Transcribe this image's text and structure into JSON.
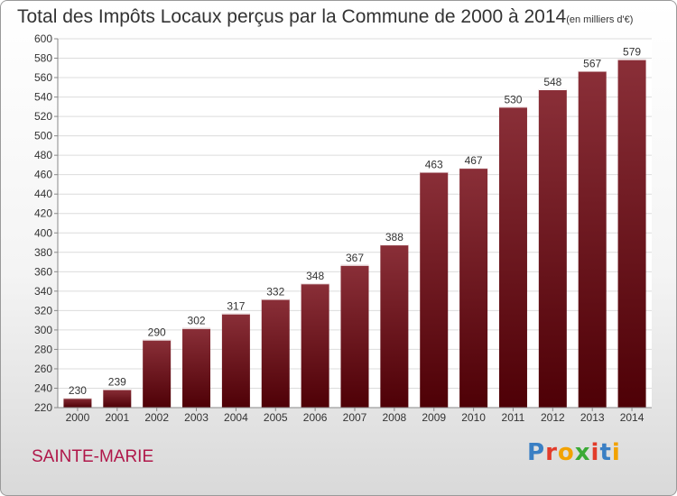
{
  "title": "Total des Impôts Locaux perçus par la Commune de 2000 à 2014",
  "subtitle": "(en milliers d'€)",
  "commune": "SAINTE-MARIE",
  "logo": {
    "text": "Proxiti",
    "letters": [
      {
        "ch": "P",
        "color": "#3a7fc4"
      },
      {
        "ch": "r",
        "color": "#e23b2a"
      },
      {
        "ch": "o",
        "color": "#f2a200"
      },
      {
        "ch": "x",
        "color": "#3aaa35"
      },
      {
        "ch": "i",
        "color": "#e23b2a"
      },
      {
        "ch": "t",
        "color": "#3a7fc4"
      },
      {
        "ch": "i",
        "color": "#f2a200"
      }
    ]
  },
  "colors": {
    "bar_top": "#8a2f38",
    "bar_bottom": "#4e0006",
    "commune": "#b0174a"
  },
  "chart_data": {
    "type": "bar",
    "title": "Total des Impôts Locaux perçus par la Commune de 2000 à 2014",
    "subtitle": "(en milliers d'€)",
    "xlabel": "",
    "ylabel": "",
    "categories": [
      "2000",
      "2001",
      "2002",
      "2003",
      "2004",
      "2005",
      "2006",
      "2007",
      "2008",
      "2009",
      "2010",
      "2011",
      "2012",
      "2013",
      "2014"
    ],
    "values": [
      230,
      239,
      290,
      302,
      317,
      332,
      348,
      367,
      388,
      463,
      467,
      530,
      548,
      567,
      579
    ],
    "ylim": [
      220,
      600
    ],
    "yticks": [
      220,
      240,
      260,
      280,
      300,
      320,
      340,
      360,
      380,
      400,
      420,
      440,
      460,
      480,
      500,
      520,
      540,
      560,
      580,
      600
    ],
    "grid": true,
    "legend": "none"
  }
}
